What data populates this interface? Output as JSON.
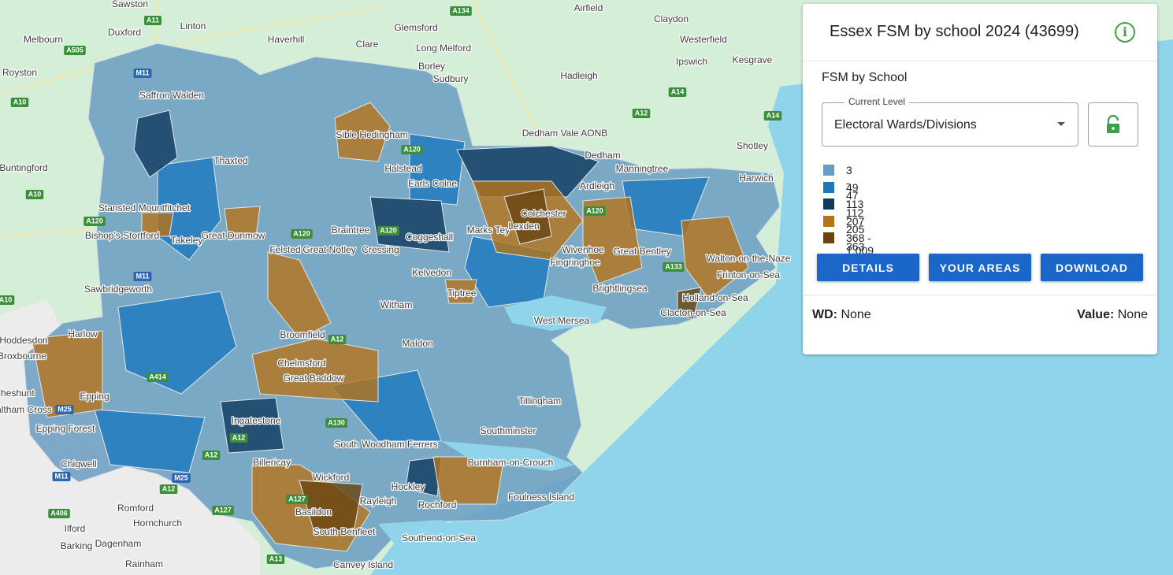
{
  "panel": {
    "title": "Essex FSM by school 2024 (43699)",
    "info_icon": "i",
    "subtitle": "FSM by School",
    "level_label": "Current Level",
    "level_value": "Electoral Wards/Divisions",
    "legend": [
      {
        "label": "3 - 47",
        "color": "#6a9cc2"
      },
      {
        "label": "49 - 112",
        "color": "#1b78bd"
      },
      {
        "label": "113 - 205",
        "color": "#0e3a5e"
      },
      {
        "label": "207 - 363",
        "color": "#b7731a"
      },
      {
        "label": "368 - 1,009",
        "color": "#6a430f"
      }
    ],
    "buttons": [
      "DETAILS",
      "YOUR AREAS",
      "DOWNLOAD"
    ],
    "fields": [
      {
        "key": "WD:",
        "value": "None"
      },
      {
        "key": "Value:",
        "value": "None"
      }
    ]
  },
  "map": {
    "places": [
      "Sawston",
      "Melbourn",
      "Duxford",
      "Linton",
      "Haverhill",
      "Clare",
      "Glemsford",
      "Long Melford",
      "Borley",
      "Sudbury",
      "Hadleigh",
      "Airfield",
      "Claydon",
      "Ipswich",
      "Westerfield",
      "Kesgrave",
      "Royston",
      "Saffron Walden",
      "Sible Hedingham",
      "Dedham Vale AONB",
      "Dedham",
      "Manningtree",
      "Shotley",
      "Buntingford",
      "Thaxted",
      "Halstead",
      "Earls Colne",
      "Ardleigh",
      "Harwich",
      "Stansted Mountfitchet",
      "Bishop's Stortford",
      "Takeley",
      "Great Dunmow",
      "Braintree",
      "Coggeshall",
      "Marks Tey",
      "Colchester",
      "Lexden",
      "Felsted",
      "Great Notley",
      "Cressing",
      "Wivenhoe",
      "Fingringhoe",
      "Great Bentley",
      "Walton-on-the-Naze",
      "Kelvedon",
      "Frinton-on-Sea",
      "Sawbridgeworth",
      "Tiptree",
      "Witham",
      "Brightlingsea",
      "Holland-on-Sea",
      "Clacton-on-Sea",
      "West Mersea",
      "Hoddesdon",
      "Broxbourne",
      "Harlow",
      "Broomfield",
      "Chelmsford",
      "Maldon",
      "Great Baddow",
      "Cheshunt",
      "Epping",
      "Tillingham",
      "Waltham Cross",
      "Epping Forest",
      "Ingatestone",
      "Southminster",
      "South Woodham Ferrers",
      "Chigwell",
      "Billericay",
      "Wickford",
      "Burnham-on-Crouch",
      "Hockley",
      "Foulness Island",
      "Romford",
      "Hornchurch",
      "Rayleigh",
      "Rochford",
      "Basildon",
      "Ilford",
      "South Benfleet",
      "Southend-on-Sea",
      "Barking",
      "Dagenham",
      "Rainham",
      "Canvey Island"
    ],
    "roads": [
      "A11",
      "A505",
      "A134",
      "M11",
      "A10",
      "A14",
      "A12",
      "A14",
      "A10",
      "A120",
      "A120",
      "A120",
      "A120",
      "A120",
      "M11",
      "A10",
      "A133",
      "A12",
      "A414",
      "M25",
      "A130",
      "A12",
      "A12",
      "M25",
      "M11",
      "A12",
      "A127",
      "A127",
      "A406",
      "A13"
    ]
  }
}
